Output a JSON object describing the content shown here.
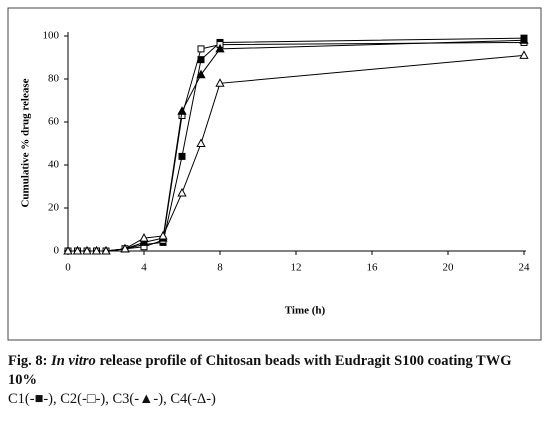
{
  "chart_data": {
    "type": "line",
    "xlabel": "Time (h)",
    "ylabel": "Cumulative % drug release",
    "x": [
      0,
      0.5,
      1,
      1.5,
      2,
      3,
      4,
      5,
      6,
      7,
      8,
      24
    ],
    "series": [
      {
        "color": "#000000",
        "marker": "square-filled",
        "values": [
          0,
          0,
          0,
          0,
          0,
          1,
          3,
          4,
          44,
          89,
          97,
          99
        ]
      },
      {
        "color": "#000000",
        "marker": "square-open",
        "values": [
          0,
          0,
          0,
          0,
          0,
          1,
          2,
          5,
          63,
          94,
          96,
          97
        ]
      },
      {
        "color": "#000000",
        "marker": "triangle-filled",
        "values": [
          0,
          0,
          0,
          0,
          0,
          1,
          4,
          6,
          65,
          82,
          94,
          98
        ]
      },
      {
        "color": "#000000",
        "marker": "triangle-open",
        "values": [
          0,
          0,
          0,
          0,
          0,
          1,
          6,
          7,
          27,
          50,
          78,
          91
        ]
      }
    ],
    "xlim": [
      0,
      24
    ],
    "xticks": [
      0,
      4,
      8,
      12,
      16,
      20,
      24
    ],
    "ylim": [
      0,
      100
    ],
    "yticks": [
      0,
      20,
      40,
      60,
      80,
      100
    ],
    "grid": false
  },
  "caption": {
    "label": "Fig. 8:",
    "italic": "In vitro",
    "text": "release profile of Chitosan beads with Eudragit S100 coating TWG 10%",
    "legend": "C1(-■-), C2(-□-), C3(-▲-), C4(-Δ-)"
  }
}
